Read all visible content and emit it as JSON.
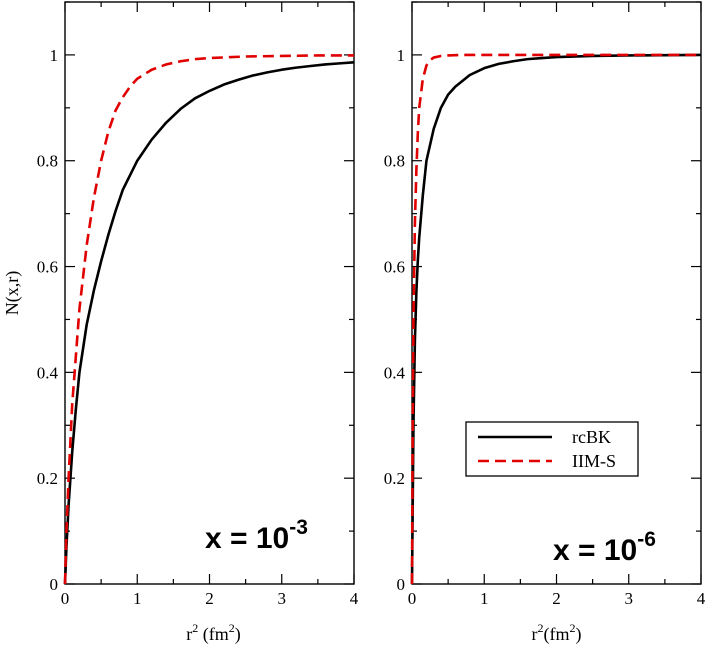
{
  "chart_data": [
    {
      "type": "line",
      "id": "left",
      "xlabel": "r",
      "xlabel_sup": "2",
      "xlabel_unit_open": " (fm",
      "xlabel_unit_sup": "2",
      "xlabel_unit_close": ")",
      "ylabel": "N(x,r)",
      "xlim": [
        0,
        4
      ],
      "ylim": [
        0,
        1.1
      ],
      "xticks": [
        "0",
        "1",
        "2",
        "3",
        "4"
      ],
      "yticks": [
        "0",
        "0.2",
        "0.4",
        "0.6",
        "0.8",
        "1"
      ],
      "annotation_base": "x = 10",
      "annotation_exp": "-3",
      "series": [
        {
          "name": "rcBK",
          "color": "#000000",
          "dash": "solid",
          "x": [
            0,
            0.02,
            0.05,
            0.1,
            0.15,
            0.2,
            0.3,
            0.4,
            0.5,
            0.6,
            0.7,
            0.8,
            1.0,
            1.2,
            1.4,
            1.6,
            1.8,
            2.0,
            2.2,
            2.4,
            2.6,
            2.8,
            3.0,
            3.2,
            3.4,
            3.6,
            3.8,
            4.0
          ],
          "y": [
            0,
            0.07,
            0.15,
            0.25,
            0.33,
            0.4,
            0.49,
            0.555,
            0.61,
            0.66,
            0.705,
            0.745,
            0.8,
            0.84,
            0.872,
            0.898,
            0.918,
            0.932,
            0.944,
            0.953,
            0.961,
            0.967,
            0.972,
            0.976,
            0.979,
            0.982,
            0.984,
            0.986
          ]
        },
        {
          "name": "IIM-S",
          "color": "#e00000",
          "dash": "dashed",
          "x": [
            0,
            0.02,
            0.05,
            0.1,
            0.15,
            0.2,
            0.3,
            0.4,
            0.5,
            0.6,
            0.7,
            0.8,
            0.9,
            1.0,
            1.2,
            1.4,
            1.6,
            1.8,
            2.0,
            2.5,
            3.0,
            3.5,
            4.0
          ],
          "y": [
            0,
            0.1,
            0.2,
            0.34,
            0.43,
            0.52,
            0.64,
            0.73,
            0.8,
            0.855,
            0.895,
            0.92,
            0.94,
            0.955,
            0.972,
            0.982,
            0.988,
            0.992,
            0.994,
            0.997,
            0.998,
            0.999,
            0.999
          ]
        }
      ]
    },
    {
      "type": "line",
      "id": "right",
      "xlabel": "r",
      "xlabel_sup": "2",
      "xlabel_unit_open": "(fm",
      "xlabel_unit_sup": "2",
      "xlabel_unit_close": ")",
      "ylabel": "",
      "xlim": [
        0,
        4
      ],
      "ylim": [
        0,
        1.1
      ],
      "xticks": [
        "0",
        "1",
        "2",
        "3",
        "4"
      ],
      "yticks": [
        "0",
        "0.2",
        "0.4",
        "0.6",
        "0.8",
        "1"
      ],
      "annotation_base": "x = 10",
      "annotation_exp": "-6",
      "legend_position": "middle-right",
      "series": [
        {
          "name": "rcBK",
          "color": "#000000",
          "dash": "solid",
          "x": [
            0,
            0.01,
            0.02,
            0.04,
            0.06,
            0.08,
            0.1,
            0.15,
            0.2,
            0.3,
            0.4,
            0.5,
            0.6,
            0.8,
            1.0,
            1.2,
            1.4,
            1.6,
            1.8,
            2.0,
            2.5,
            3.0,
            3.5,
            4.0
          ],
          "y": [
            0,
            0.15,
            0.3,
            0.46,
            0.55,
            0.61,
            0.655,
            0.735,
            0.8,
            0.86,
            0.9,
            0.925,
            0.94,
            0.962,
            0.975,
            0.983,
            0.988,
            0.992,
            0.994,
            0.996,
            0.998,
            0.999,
            0.9995,
            1.0
          ]
        },
        {
          "name": "IIM-S",
          "color": "#e00000",
          "dash": "dashed",
          "x": [
            0,
            0.01,
            0.02,
            0.04,
            0.06,
            0.08,
            0.1,
            0.15,
            0.2,
            0.25,
            0.3,
            0.4,
            0.5,
            0.7,
            1.0,
            1.5,
            2.0,
            3.0,
            4.0
          ],
          "y": [
            0,
            0.3,
            0.5,
            0.68,
            0.78,
            0.85,
            0.9,
            0.955,
            0.98,
            0.99,
            0.995,
            0.998,
            0.999,
            1.0,
            1.0,
            1.0,
            1.0,
            1.0,
            1.0
          ]
        }
      ]
    }
  ]
}
